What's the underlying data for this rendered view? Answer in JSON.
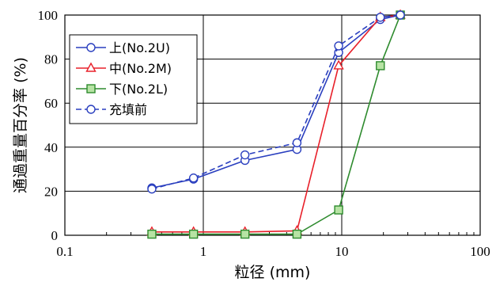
{
  "chart_data": {
    "type": "line",
    "xscale": "log",
    "xlim": [
      0.1,
      100
    ],
    "ylim": [
      0,
      100
    ],
    "grid": true,
    "legend_position": "top-left",
    "xlabel": "粒径 (mm)",
    "ylabel": "通過重量百分率 (%)",
    "xticks": [
      {
        "value": 0.1,
        "label": "0.1"
      },
      {
        "value": 1,
        "label": "1"
      },
      {
        "value": 10,
        "label": "10"
      },
      {
        "value": 100,
        "label": "100"
      }
    ],
    "yticks": [
      {
        "value": 0,
        "label": "0"
      },
      {
        "value": 20,
        "label": "20"
      },
      {
        "value": 40,
        "label": "40"
      },
      {
        "value": 60,
        "label": "60"
      },
      {
        "value": 80,
        "label": "80"
      },
      {
        "value": 100,
        "label": "100"
      }
    ],
    "series": [
      {
        "name": "上(No.2U)",
        "color": "#2a3fbf",
        "marker": "circle",
        "line": "solid",
        "x": [
          0.425,
          0.85,
          2.0,
          4.75,
          9.5,
          19.0,
          26.5
        ],
        "y": [
          21.5,
          25.5,
          34.0,
          39.0,
          83.0,
          98.0,
          100.0
        ]
      },
      {
        "name": "中(No.2M)",
        "color": "#e8202a",
        "marker": "triangle",
        "line": "solid",
        "x": [
          0.425,
          0.85,
          2.0,
          4.75,
          9.5,
          19.0,
          26.5
        ],
        "y": [
          1.5,
          1.5,
          1.5,
          2.0,
          77.0,
          99.0,
          100.0
        ]
      },
      {
        "name": "下(No.2L)",
        "color": "#2e8b2e",
        "marker": "square",
        "line": "solid",
        "x": [
          0.425,
          0.85,
          2.0,
          4.75,
          9.5,
          19.0,
          26.5
        ],
        "y": [
          0.5,
          0.5,
          0.5,
          0.5,
          11.5,
          77.0,
          100.0
        ]
      },
      {
        "name": "充填前",
        "color": "#2a3fbf",
        "marker": "circle",
        "line": "dashed",
        "x": [
          0.425,
          0.85,
          2.0,
          4.75,
          9.5,
          19.0,
          26.5
        ],
        "y": [
          21.0,
          26.0,
          36.5,
          42.0,
          86.0,
          99.0,
          100.0
        ]
      }
    ]
  }
}
